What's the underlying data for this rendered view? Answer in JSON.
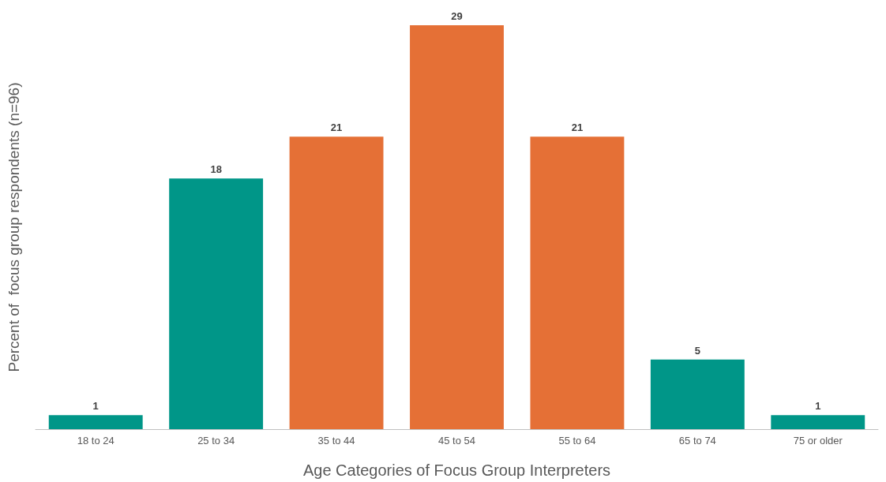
{
  "chart_data": {
    "type": "bar",
    "xlabel": "Age Categories of Focus Group Interpreters",
    "ylabel": "Percent of  focus group respondents (n=96)",
    "categories": [
      "18 to 24",
      "25 to 34",
      "35 to 44",
      "45 to 54",
      "55 to 64",
      "65 to 74",
      "75 or older"
    ],
    "values": [
      1,
      18,
      21,
      29,
      21,
      5,
      1
    ],
    "colors": [
      "#009688",
      "#009688",
      "#e57036",
      "#e57036",
      "#e57036",
      "#009688",
      "#009688"
    ],
    "data_labels": true,
    "grid": false,
    "tick_labels": "x"
  }
}
